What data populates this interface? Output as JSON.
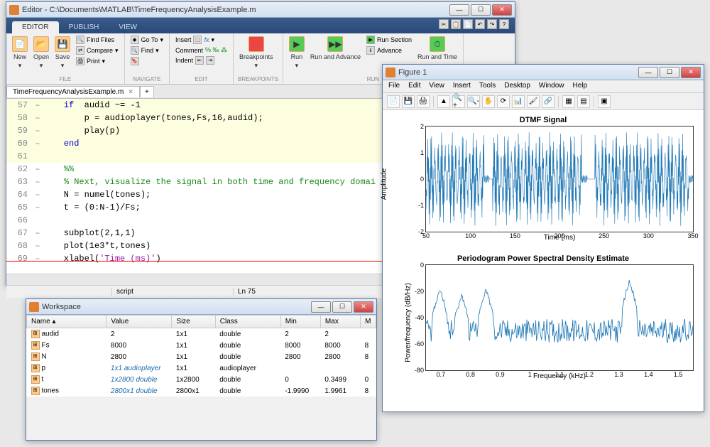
{
  "editor": {
    "title": "Editor - C:\\Documents\\MATLAB\\TimeFrequencyAnalysisExample.m",
    "tabs": {
      "editor": "EDITOR",
      "publish": "PUBLISH",
      "view": "VIEW"
    },
    "ribbon": {
      "file": {
        "label": "FILE",
        "new": "New",
        "open": "Open",
        "save": "Save",
        "find_files": "Find Files",
        "compare": "Compare",
        "print": "Print"
      },
      "navigate": {
        "label": "NAVIGATE",
        "goto": "Go To",
        "find": "Find",
        "bookmark": ""
      },
      "edit": {
        "label": "EDIT",
        "insert": "Insert",
        "comment": "Comment",
        "indent": "Indent",
        "fx": "fx"
      },
      "breakpoints": {
        "label": "BREAKPOINTS",
        "breakpoints": "Breakpoints"
      },
      "run": {
        "label": "RUN",
        "run": "Run",
        "run_advance": "Run and Advance",
        "run_section": "Run Section",
        "advance": "Advance",
        "run_time": "Run and Time"
      }
    },
    "file_tab": "TimeFrequencyAnalysisExample.m",
    "code_lines": [
      {
        "n": 57,
        "fold": "–",
        "hl": true,
        "html": "<span class='kw'>if</span>  audid ~= -1"
      },
      {
        "n": 58,
        "fold": "–",
        "hl": true,
        "html": "    p = audioplayer(tones,Fs,16,audid);"
      },
      {
        "n": 59,
        "fold": "–",
        "hl": true,
        "html": "    play(p)"
      },
      {
        "n": 60,
        "fold": "–",
        "hl": true,
        "html": "<span class='kw'>end</span>"
      },
      {
        "n": 61,
        "fold": "",
        "hl": true,
        "html": " "
      },
      {
        "n": 62,
        "fold": "–",
        "hl": false,
        "html": "<span class='cm'>%%</span>"
      },
      {
        "n": 63,
        "fold": "–",
        "hl": false,
        "html": "<span class='cm'>% Next, visualize the signal in both time and frequency domai</span>"
      },
      {
        "n": 64,
        "fold": "–",
        "hl": false,
        "html": "N = numel(tones);"
      },
      {
        "n": 65,
        "fold": "–",
        "hl": false,
        "html": "t = (0:N-1)/Fs;"
      },
      {
        "n": 66,
        "fold": "",
        "hl": false,
        "html": " "
      },
      {
        "n": 67,
        "fold": "–",
        "hl": false,
        "html": "subplot(2,1,1)"
      },
      {
        "n": 68,
        "fold": "–",
        "hl": false,
        "html": "plot(1e3*t,tones)"
      },
      {
        "n": 69,
        "fold": "–",
        "hl": false,
        "html": "xlabel(<span class='str'>'Time (ms)'</span>)"
      }
    ],
    "status": {
      "script": "script",
      "ln": "Ln 75"
    }
  },
  "workspace": {
    "title": "Workspace",
    "columns": [
      "Name",
      "Value",
      "Size",
      "Class",
      "Min",
      "Max",
      "M"
    ],
    "col_widths": [
      "110px",
      "90px",
      "60px",
      "90px",
      "55px",
      "55px",
      "20px"
    ],
    "rows": [
      {
        "name": "audid",
        "value": "2",
        "size": "1x1",
        "class": "double",
        "min": "2",
        "max": "2",
        "italic": false
      },
      {
        "name": "Fs",
        "value": "8000",
        "size": "1x1",
        "class": "double",
        "min": "8000",
        "max": "8000",
        "m": "8",
        "italic": false
      },
      {
        "name": "N",
        "value": "2800",
        "size": "1x1",
        "class": "double",
        "min": "2800",
        "max": "2800",
        "m": "8",
        "italic": false
      },
      {
        "name": "p",
        "value": "1x1 audioplayer",
        "size": "1x1",
        "class": "audioplayer",
        "min": "",
        "max": "",
        "italic": true
      },
      {
        "name": "t",
        "value": "1x2800 double",
        "size": "1x2800",
        "class": "double",
        "min": "0",
        "max": "0.3499",
        "m": "0",
        "italic": true
      },
      {
        "name": "tones",
        "value": "2800x1 double",
        "size": "2800x1",
        "class": "double",
        "min": "-1.9990",
        "max": "1.9961",
        "m": "8",
        "italic": true
      }
    ]
  },
  "figure": {
    "title": "Figure 1",
    "menus": [
      "File",
      "Edit",
      "View",
      "Insert",
      "Tools",
      "Desktop",
      "Window",
      "Help"
    ],
    "chart1": {
      "title": "DTMF Signal",
      "xlabel": "Time (ms)",
      "ylabel": "Amplitude",
      "xlim": [
        50,
        350
      ],
      "xticks": [
        50,
        100,
        150,
        200,
        250,
        300,
        350
      ],
      "ylim": [
        -2,
        2
      ],
      "yticks": [
        -2,
        -1,
        0,
        1,
        2
      ],
      "line_color": "#1f77b4",
      "bursts": [
        [
          50,
          115
        ],
        [
          125,
          225
        ],
        [
          240,
          345
        ]
      ],
      "amp": 1.8,
      "freq": 110
    },
    "chart2": {
      "title": "Periodogram Power Spectral Density Estimate",
      "xlabel": "Frequency (kHz)",
      "ylabel": "Power/frequency (dB/Hz)",
      "xlim": [
        0.65,
        1.55
      ],
      "xticks": [
        0.7,
        0.8,
        0.9,
        1,
        1.1,
        1.2,
        1.3,
        1.4,
        1.5
      ],
      "ylim": [
        -80,
        0
      ],
      "yticks": [
        -80,
        -60,
        -40,
        -20,
        0
      ],
      "line_color": "#1f77b4",
      "peaks": [
        [
          0.697,
          -18
        ],
        [
          0.77,
          -22
        ],
        [
          0.852,
          -18
        ],
        [
          1.336,
          -12
        ]
      ],
      "floor": -50,
      "noise": 18
    }
  }
}
